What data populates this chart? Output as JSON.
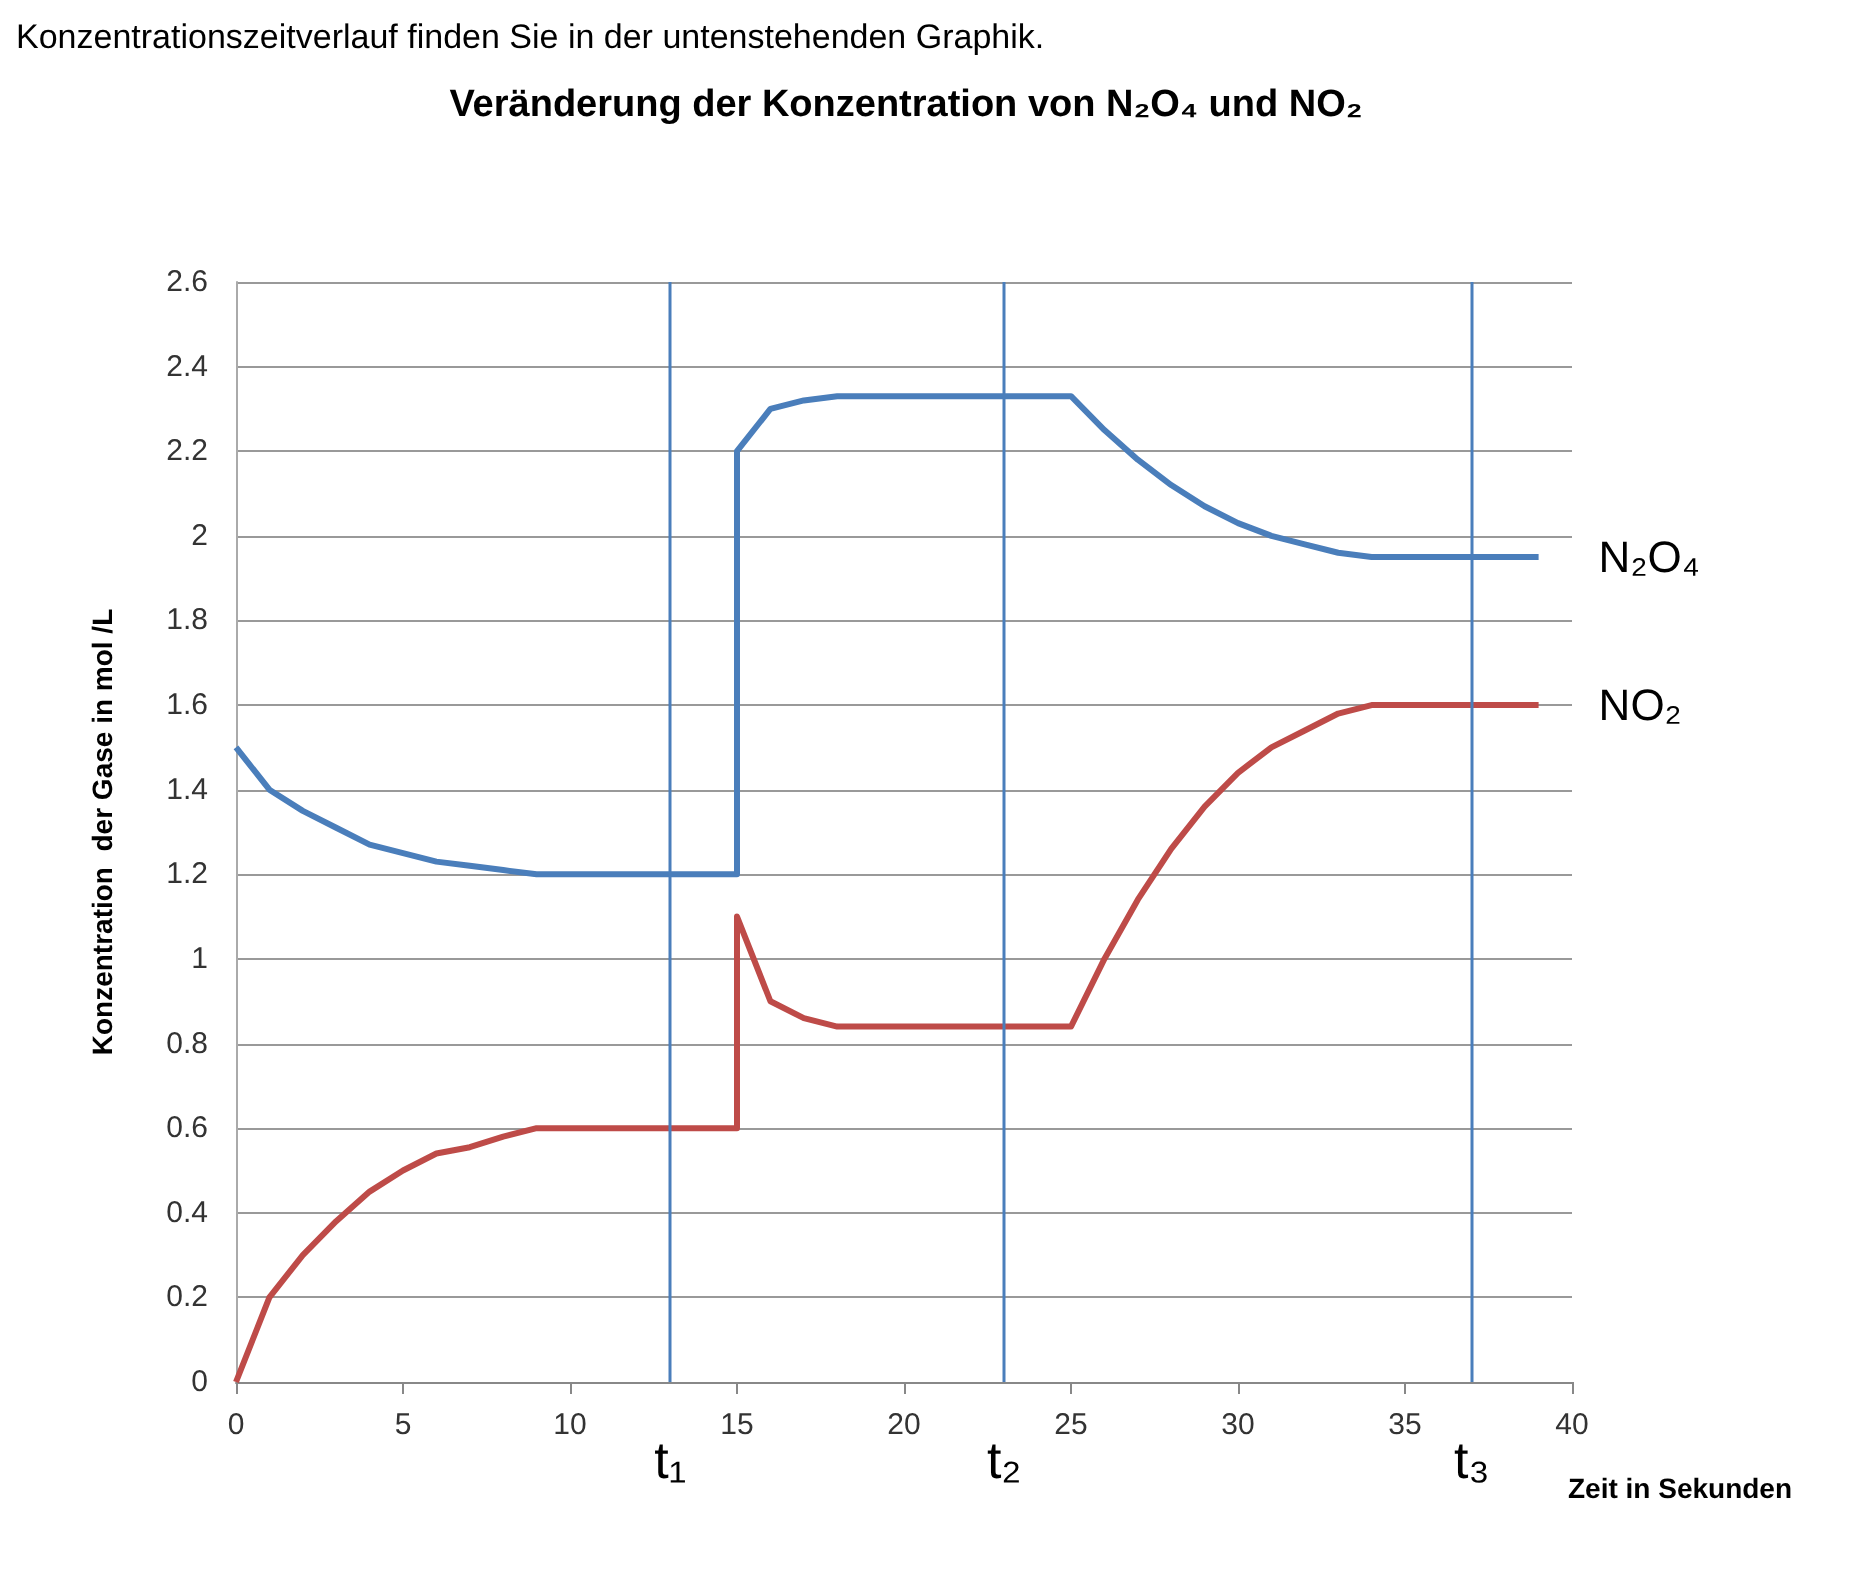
{
  "chart_data": {
    "type": "line",
    "title": "Veränderung der Konzentration von N₂O₄ und NO₂",
    "xlabel": "Zeit in Sekunden",
    "ylabel": "Konzentration  der Gase in mol /L",
    "annotations": [
      "Konzentrationszeitverlauf finden Sie in der untenstehenden Graphik."
    ],
    "series": [
      {
        "name": "N₂O₄",
        "color": "#4a7ebb",
        "x": [
          0,
          1,
          2,
          3,
          4,
          5,
          6,
          7,
          8,
          9,
          10,
          11,
          12,
          13,
          14,
          15,
          15,
          16,
          17,
          18,
          19,
          20,
          21,
          22,
          23,
          24,
          25,
          26,
          27,
          28,
          29,
          30,
          31,
          32,
          33,
          34,
          35,
          36,
          37,
          38,
          39
        ],
        "values": [
          1.5,
          1.4,
          1.35,
          1.31,
          1.27,
          1.25,
          1.23,
          1.22,
          1.21,
          1.2,
          1.2,
          1.2,
          1.2,
          1.2,
          1.2,
          1.2,
          2.2,
          2.3,
          2.32,
          2.33,
          2.33,
          2.33,
          2.33,
          2.33,
          2.33,
          2.33,
          2.33,
          2.25,
          2.18,
          2.12,
          2.07,
          2.03,
          2.0,
          1.98,
          1.96,
          1.95,
          1.95,
          1.95,
          1.95,
          1.95,
          1.95
        ]
      },
      {
        "name": "NO₂",
        "color": "#be4b48",
        "x": [
          0,
          1,
          2,
          3,
          4,
          5,
          6,
          7,
          8,
          9,
          10,
          11,
          12,
          13,
          14,
          15,
          15,
          16,
          17,
          18,
          19,
          20,
          21,
          22,
          23,
          24,
          25,
          26,
          27,
          28,
          29,
          30,
          31,
          32,
          33,
          34,
          35,
          36,
          37,
          38,
          39
        ],
        "values": [
          0,
          0.2,
          0.3,
          0.38,
          0.45,
          0.5,
          0.54,
          0.555,
          0.58,
          0.6,
          0.6,
          0.6,
          0.6,
          0.6,
          0.6,
          0.6,
          1.1,
          0.9,
          0.86,
          0.84,
          0.84,
          0.84,
          0.84,
          0.84,
          0.84,
          0.84,
          0.84,
          1.0,
          1.14,
          1.26,
          1.36,
          1.44,
          1.5,
          1.54,
          1.58,
          1.6,
          1.6,
          1.6,
          1.6,
          1.6,
          1.6
        ]
      }
    ],
    "xlim": [
      0,
      40
    ],
    "xticks": [
      0,
      5,
      10,
      15,
      20,
      25,
      30,
      35,
      40
    ],
    "ylim": [
      0,
      2.6
    ],
    "yticks": [
      0,
      0.2,
      0.4,
      0.6,
      0.8,
      1,
      1.2,
      1.4,
      1.6,
      1.8,
      2,
      2.2,
      2.4,
      2.6
    ],
    "ref_lines": [
      {
        "axis": "x",
        "value": 13,
        "label": "t₁",
        "color": "#4a7ebb"
      },
      {
        "axis": "x",
        "value": 23,
        "label": "t₂",
        "color": "#4a7ebb"
      },
      {
        "axis": "x",
        "value": 37,
        "label": "t₃",
        "color": "#4a7ebb"
      }
    ],
    "grid": "y",
    "marker": "none",
    "legend": false
  }
}
